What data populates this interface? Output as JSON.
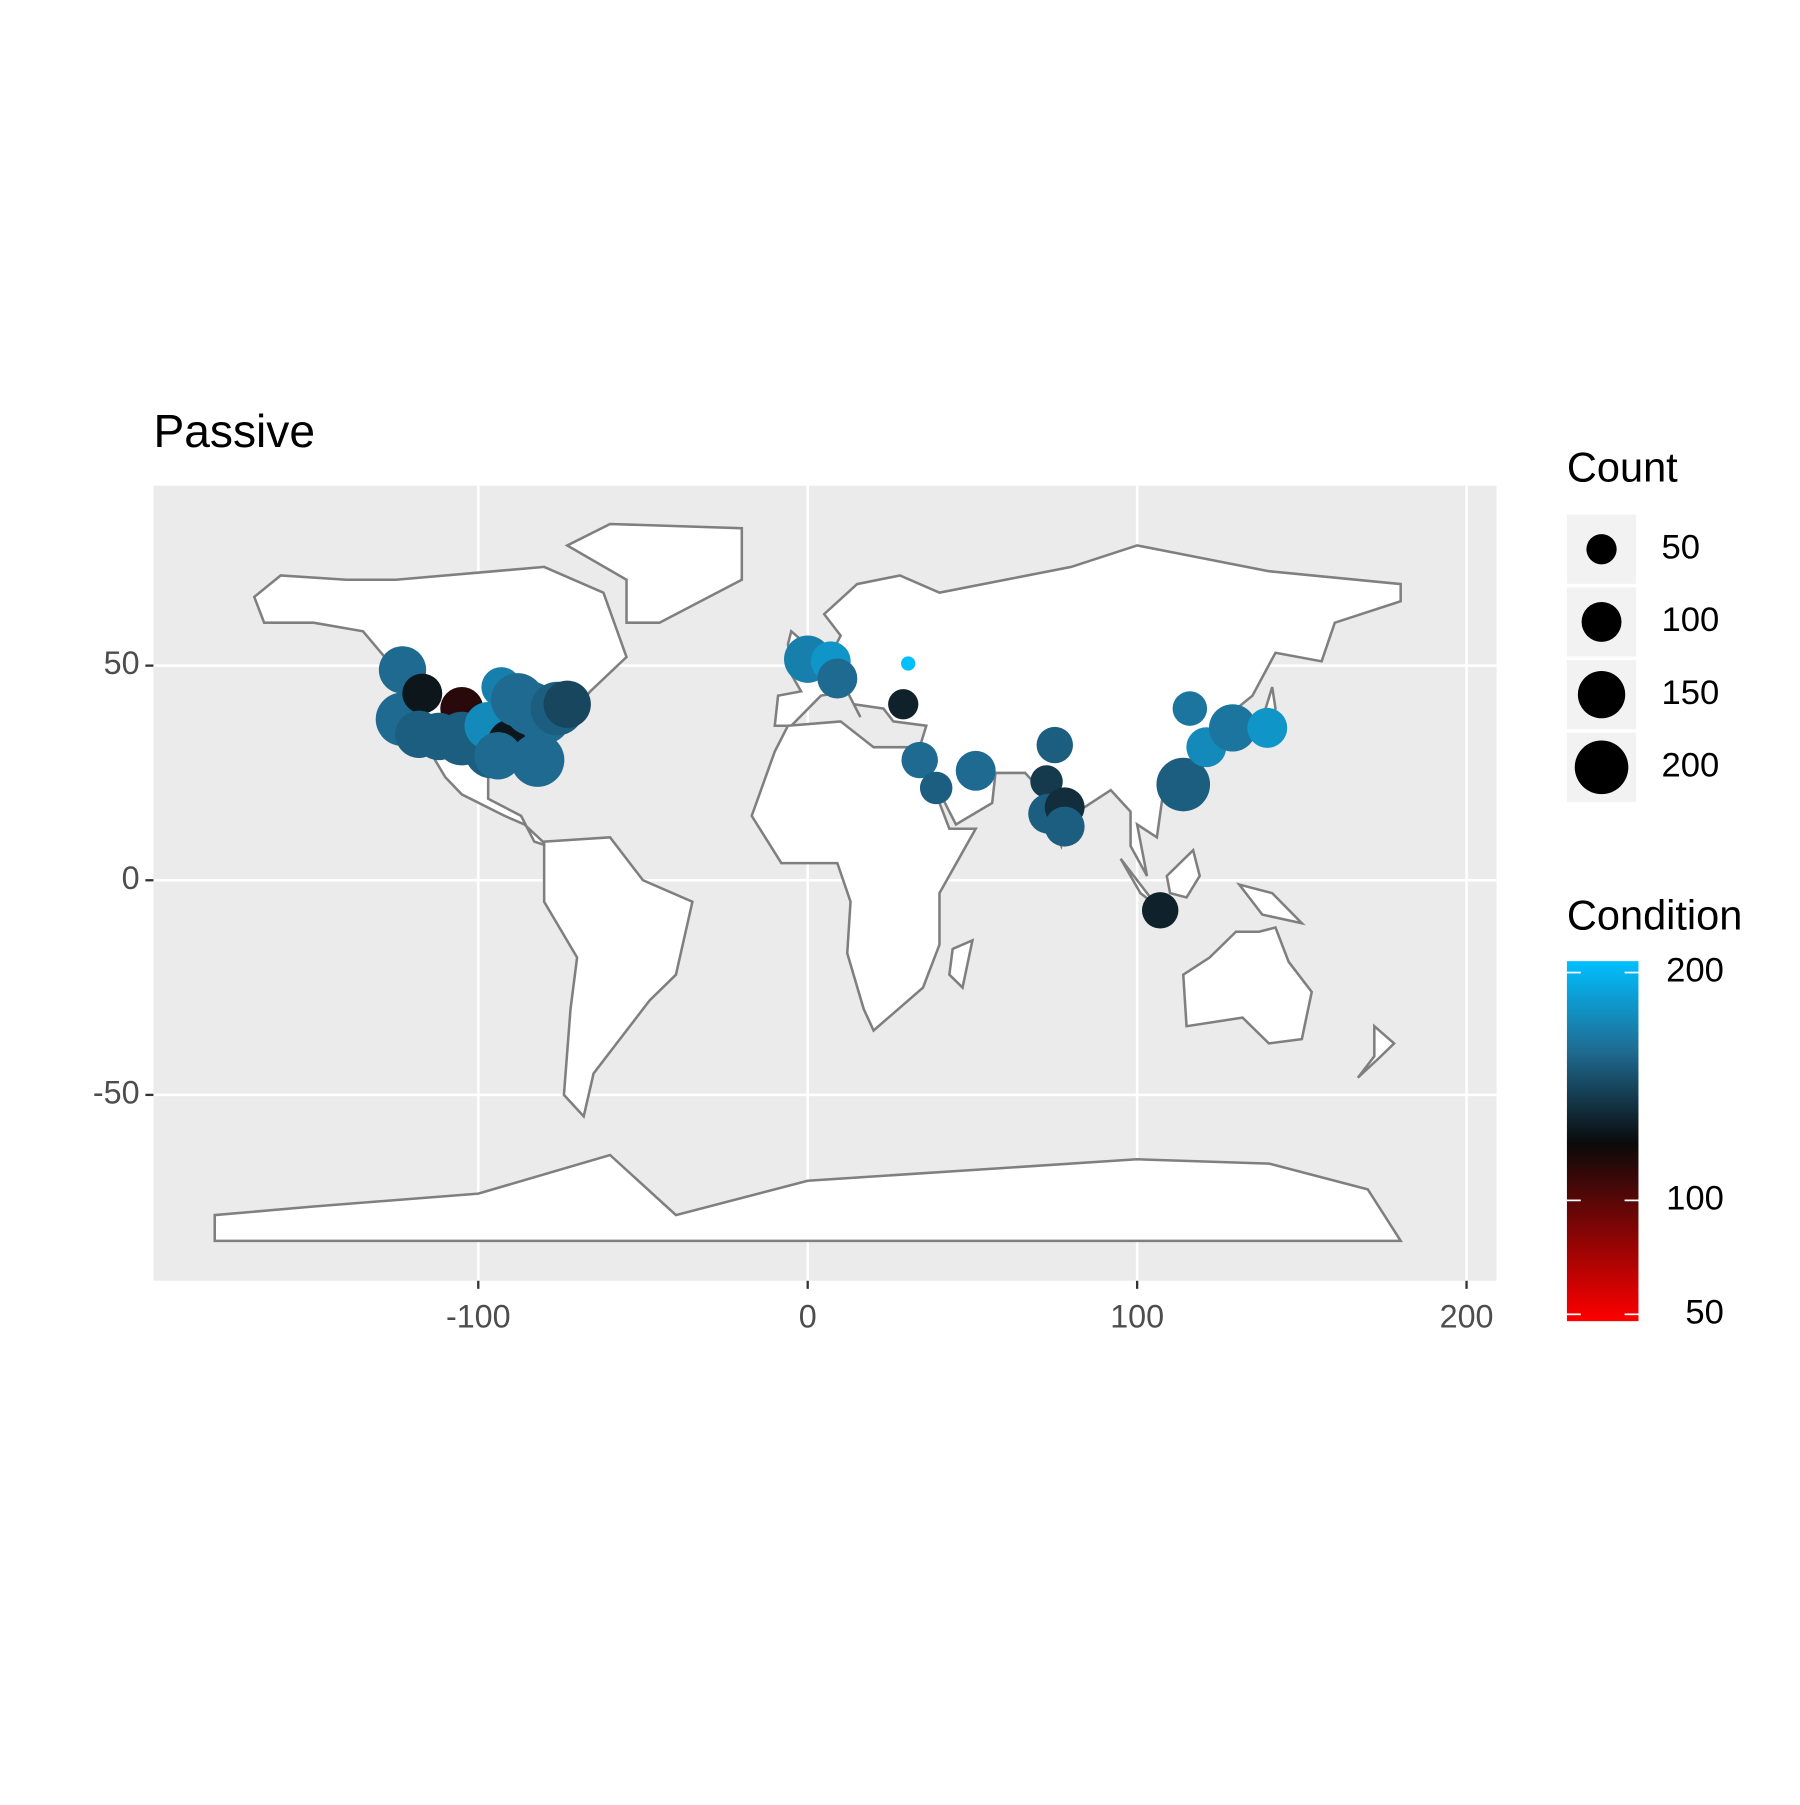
{
  "chart_data": {
    "type": "scatter",
    "title": "Passive",
    "x": [
      -123,
      -123,
      -117,
      -105,
      -118,
      -112,
      -105,
      -96,
      -97,
      -90,
      -93,
      -88,
      -84,
      -80,
      -82,
      -76,
      -73,
      -94,
      0,
      7,
      9,
      30.5,
      29,
      34,
      39,
      51,
      75,
      72.5,
      73,
      78,
      78,
      114,
      121,
      116,
      129,
      139.5,
      107
    ],
    "y": [
      49,
      37.5,
      43.5,
      40,
      34,
      33.5,
      33,
      30,
      36,
      32,
      45,
      42,
      40,
      38,
      28,
      40,
      41,
      29,
      51.5,
      51,
      47,
      50.5,
      41,
      28,
      21.5,
      25.5,
      31.5,
      23,
      15.5,
      17,
      12.5,
      22.3,
      31,
      40,
      35.5,
      35.5,
      -7
    ],
    "size": [
      150,
      200,
      100,
      120,
      150,
      150,
      200,
      200,
      150,
      150,
      100,
      200,
      200,
      200,
      200,
      200,
      150,
      150,
      150,
      100,
      100,
      5,
      50,
      80,
      60,
      100,
      80,
      60,
      100,
      100,
      100,
      200,
      100,
      70,
      150,
      100,
      80
    ],
    "condition": [
      165,
      165,
      130,
      115,
      160,
      160,
      160,
      160,
      180,
      130,
      175,
      165,
      165,
      165,
      165,
      160,
      150,
      165,
      175,
      185,
      165,
      205,
      135,
      165,
      160,
      165,
      160,
      145,
      160,
      140,
      160,
      160,
      180,
      170,
      170,
      185,
      135
    ],
    "xlim": [
      -198.6,
      209.1
    ],
    "ylim": [
      -93.3,
      91.9
    ],
    "xticks": [
      -100,
      0,
      100,
      200
    ],
    "yticks": [
      -50,
      0,
      50
    ],
    "grid": true,
    "size_legend": {
      "title": "Count",
      "breaks": [
        50,
        100,
        150,
        200
      ]
    },
    "color_legend": {
      "title": "Condition",
      "lim": [
        47,
        205
      ],
      "breaks": [
        50,
        100,
        200
      ],
      "stops": [
        {
          "value": 47,
          "color": "#ff0000"
        },
        {
          "value": 125,
          "color": "#0a0a0a"
        },
        {
          "value": 165,
          "color": "#1f6a90"
        },
        {
          "value": 205,
          "color": "#00bfff"
        }
      ]
    }
  }
}
